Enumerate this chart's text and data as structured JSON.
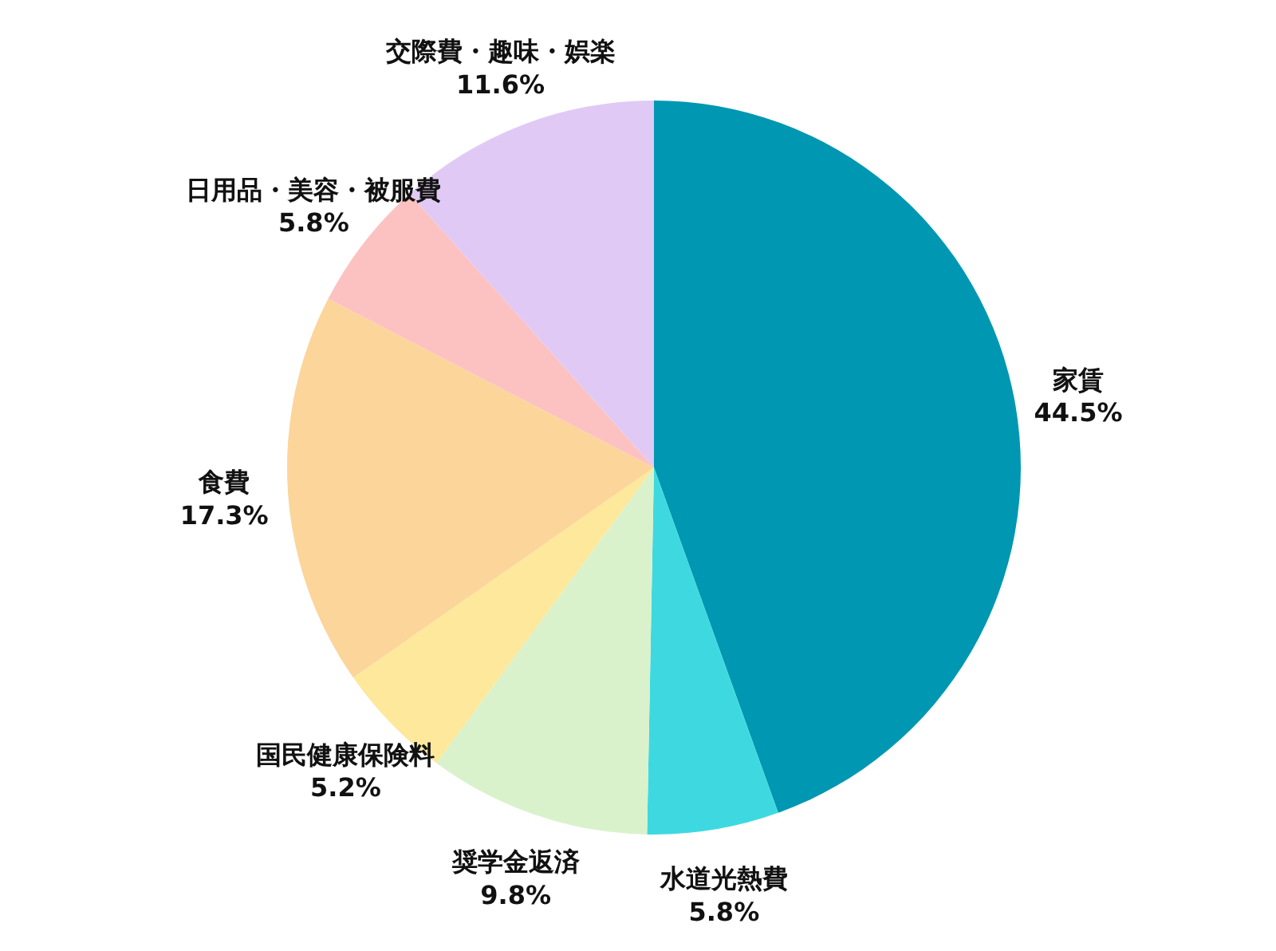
{
  "chart_data": {
    "type": "pie",
    "categories": [
      "家賃",
      "水道光熱費",
      "奨学金返済",
      "国民健康保険料",
      "食費",
      "日用品・美容・被服費",
      "交際費・趣味・娯楽"
    ],
    "values": [
      44.5,
      5.8,
      9.8,
      5.2,
      17.3,
      5.8,
      11.6
    ],
    "colors": [
      "#0097b2",
      "#3ed9e0",
      "#d9f2cc",
      "#fde89b",
      "#fcd59b",
      "#fcc2c2",
      "#e0caf5"
    ],
    "value_labels": [
      "44.5%",
      "5.8%",
      "9.8%",
      "5.2%",
      "17.3%",
      "5.8%",
      "11.6%"
    ],
    "legend": false
  }
}
